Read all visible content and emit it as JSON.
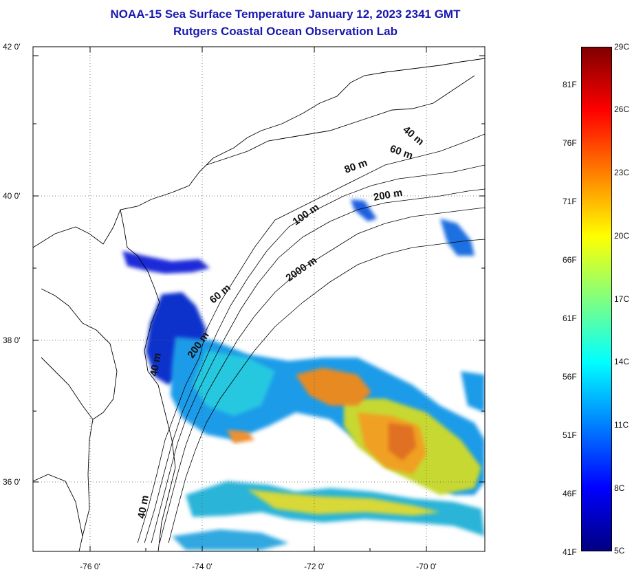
{
  "title": {
    "line1": "NOAA-15 Sea Surface Temperature January 12, 2023 2341 GMT",
    "line2": "Rutgers Coastal Ocean Observation Lab"
  },
  "axes": {
    "lat_ticks": [
      "42 0'",
      "40 0'",
      "38 0'",
      "36 0'"
    ],
    "lon_ticks": [
      "-76 0'",
      "-74 0'",
      "-72 0'",
      "-70 0'"
    ]
  },
  "depth_labels": [
    "40 m",
    "60 m",
    "80 m",
    "200 m",
    "100 m",
    "2000 m",
    "60 m",
    "200 m",
    "40 m",
    "40 m"
  ],
  "colorbar": {
    "fahrenheit": [
      "81F",
      "76F",
      "71F",
      "66F",
      "61F",
      "56F",
      "51F",
      "46F",
      "41F"
    ],
    "celsius": [
      "29C",
      "26C",
      "23C",
      "20C",
      "17C",
      "14C",
      "11C",
      "8C",
      "5C"
    ],
    "colors": [
      "#000080",
      "#0000ff",
      "#0080ff",
      "#00ffff",
      "#80ff80",
      "#ffff00",
      "#ff8000",
      "#ff0000",
      "#800000"
    ]
  }
}
